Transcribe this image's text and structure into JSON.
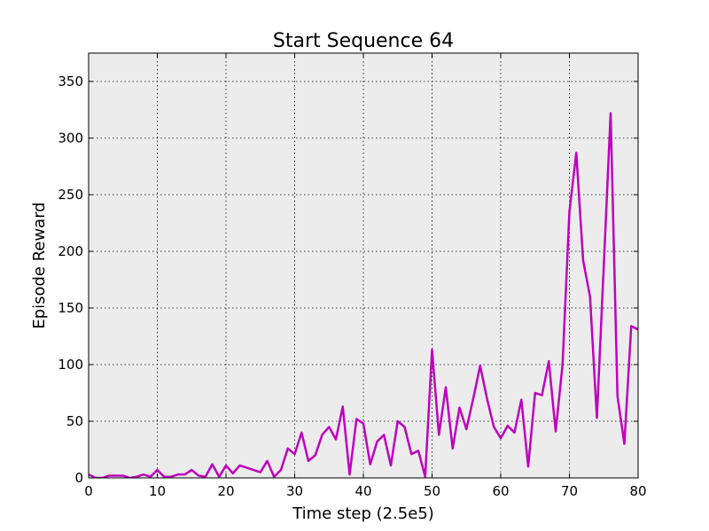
{
  "chart_data": {
    "type": "line",
    "title": "Start Sequence 64",
    "xlabel": "Time step (2.5e5)",
    "ylabel": "Episode Reward",
    "xlim": [
      0,
      80
    ],
    "ylim": [
      0,
      375
    ],
    "xticks": [
      0,
      10,
      20,
      30,
      40,
      50,
      60,
      70,
      80
    ],
    "yticks": [
      0,
      50,
      100,
      150,
      200,
      250,
      300,
      350
    ],
    "grid": true,
    "background": "#ececec",
    "series": [
      {
        "color": "#bf00bf",
        "x": [
          0,
          1,
          2,
          3,
          4,
          5,
          6,
          7,
          8,
          9,
          10,
          11,
          12,
          13,
          14,
          15,
          16,
          17,
          18,
          19,
          20,
          21,
          22,
          23,
          24,
          25,
          26,
          27,
          28,
          29,
          30,
          31,
          32,
          33,
          34,
          35,
          36,
          37,
          38,
          39,
          40,
          41,
          42,
          43,
          44,
          45,
          46,
          47,
          48,
          49,
          50,
          51,
          52,
          53,
          54,
          55,
          56,
          57,
          58,
          59,
          60,
          61,
          62,
          63,
          64,
          65,
          66,
          67,
          68,
          69,
          70,
          71,
          72,
          73,
          74,
          75,
          76,
          77,
          78,
          79,
          80
        ],
        "values": [
          3,
          0,
          0,
          2,
          2,
          2,
          0,
          1,
          3,
          1,
          7,
          1,
          1,
          3,
          3,
          7,
          2,
          1,
          12,
          1,
          11,
          4,
          11,
          9,
          7,
          5,
          15,
          1,
          7,
          26,
          21,
          40,
          15,
          20,
          38,
          45,
          34,
          63,
          3,
          52,
          48,
          12,
          32,
          38,
          11,
          50,
          45,
          21,
          24,
          1,
          113,
          38,
          80,
          26,
          62,
          43,
          70,
          99,
          70,
          45,
          35,
          46,
          40,
          69,
          10,
          75,
          73,
          103,
          41,
          100,
          235,
          287,
          192,
          160,
          53,
          187,
          322,
          72,
          30,
          134,
          131
        ]
      }
    ]
  }
}
